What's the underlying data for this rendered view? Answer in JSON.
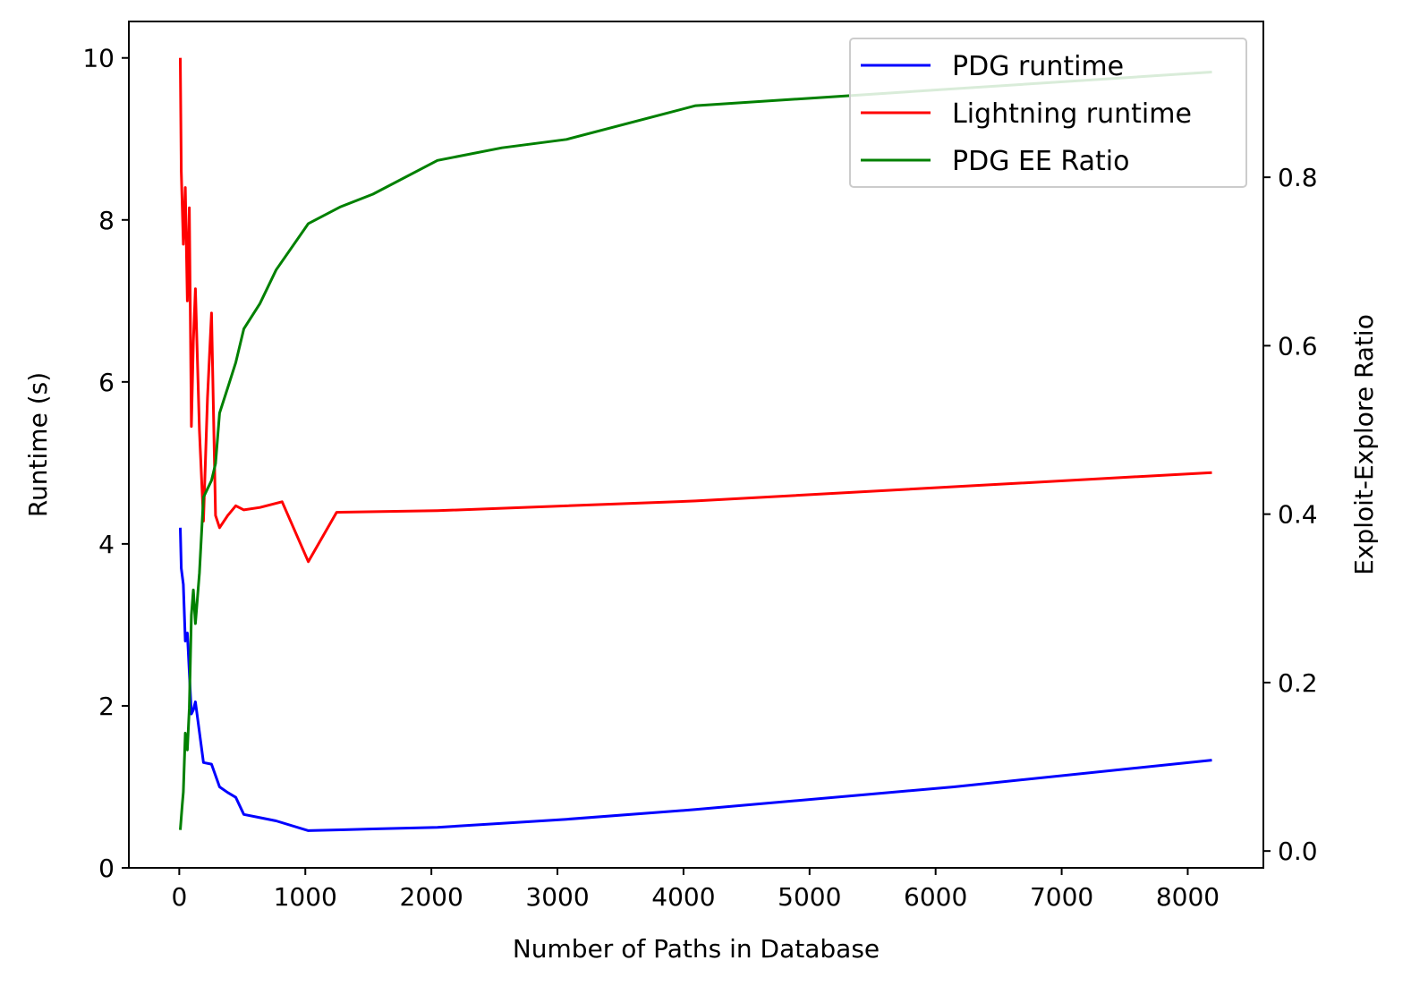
{
  "chart_data": {
    "type": "line",
    "xlabel": "Number of Paths in Database",
    "ylabel": "Runtime (s)",
    "y2label": "Exploit-Explore Ratio",
    "xlim": [
      -400,
      8600
    ],
    "ylim": [
      0,
      10.45
    ],
    "y2lim": [
      -0.02,
      0.985
    ],
    "xticks": [
      0,
      1000,
      2000,
      3000,
      4000,
      5000,
      6000,
      7000,
      8000
    ],
    "yticks": [
      0,
      2,
      4,
      6,
      8,
      10
    ],
    "y2ticks": [
      0.0,
      0.2,
      0.4,
      0.6,
      0.8
    ],
    "grid": false,
    "legend_position": "top-right",
    "series": [
      {
        "name": "PDG runtime",
        "axis": "left",
        "color": "#0000ff",
        "x": [
          8,
          16,
          32,
          48,
          64,
          96,
          112,
          128,
          192,
          256,
          320,
          384,
          448,
          512,
          640,
          768,
          1024,
          1280,
          1536,
          2048,
          2560,
          3072,
          4096,
          6144,
          8192
        ],
        "y": [
          4.2,
          3.7,
          3.5,
          2.8,
          2.9,
          1.9,
          1.95,
          2.05,
          1.3,
          1.28,
          1.0,
          0.93,
          0.87,
          0.66,
          0.62,
          0.58,
          0.46,
          0.47,
          0.48,
          0.5,
          0.55,
          0.6,
          0.72,
          1.0,
          1.33
        ]
      },
      {
        "name": "Lightning runtime",
        "axis": "left",
        "color": "#ff0000",
        "x": [
          8,
          16,
          32,
          48,
          64,
          80,
          96,
          112,
          128,
          160,
          192,
          224,
          256,
          288,
          320,
          384,
          448,
          512,
          640,
          816,
          1024,
          1248,
          2048,
          4096,
          8192
        ],
        "y": [
          10.0,
          8.6,
          7.7,
          8.4,
          7.0,
          8.15,
          5.45,
          6.5,
          7.15,
          5.4,
          4.28,
          5.8,
          6.85,
          4.35,
          4.2,
          4.35,
          4.47,
          4.42,
          4.45,
          4.52,
          3.78,
          4.39,
          4.41,
          4.53,
          4.88
        ]
      },
      {
        "name": "PDG EE Ratio",
        "axis": "right",
        "color": "#008000",
        "x": [
          8,
          16,
          24,
          32,
          48,
          64,
          80,
          96,
          112,
          128,
          160,
          192,
          256,
          288,
          320,
          384,
          448,
          512,
          640,
          768,
          1024,
          1280,
          1536,
          2048,
          2560,
          3072,
          4096,
          5120,
          6144,
          8192
        ],
        "y": [
          0.025,
          0.04,
          0.055,
          0.07,
          0.14,
          0.12,
          0.17,
          0.28,
          0.31,
          0.27,
          0.33,
          0.42,
          0.44,
          0.46,
          0.52,
          0.55,
          0.58,
          0.62,
          0.65,
          0.69,
          0.745,
          0.765,
          0.78,
          0.82,
          0.835,
          0.845,
          0.885,
          0.895,
          0.905,
          0.925
        ]
      }
    ]
  }
}
